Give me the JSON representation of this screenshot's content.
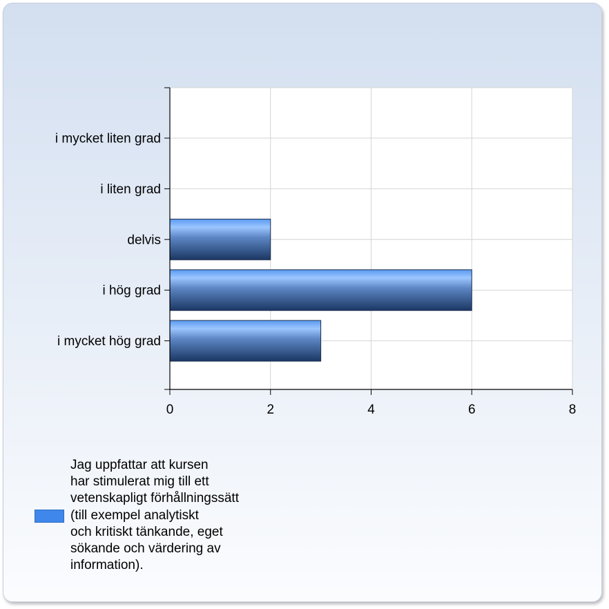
{
  "chart_data": {
    "type": "bar",
    "orientation": "horizontal",
    "categories": [
      "i mycket liten grad",
      "i liten grad",
      "delvis",
      "i hög grad",
      "i mycket hög grad"
    ],
    "series": [
      {
        "name": "Jag uppfattar att kursen\nhar stimulerat mig till ett\nvetenskapligt förhållningssätt\n(till exempel analytiskt\noch kritiskt tänkande, eget\nsökande och värdering av\ninformation).",
        "values": [
          0,
          0,
          2,
          6,
          3
        ],
        "color": "#3f87ea"
      }
    ],
    "xlim": [
      0,
      8
    ],
    "xticks": [
      0,
      2,
      4,
      6,
      8
    ],
    "grid": true,
    "legend_position": "bottom-left"
  }
}
